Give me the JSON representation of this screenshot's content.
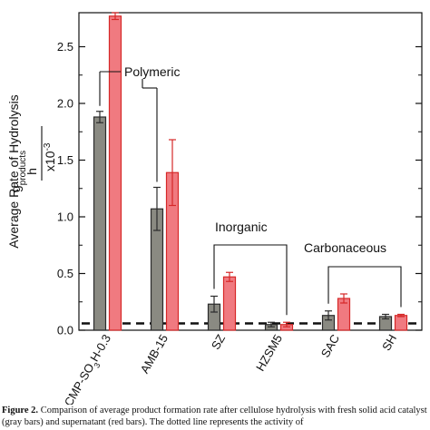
{
  "chart_data": {
    "type": "bar",
    "categories": [
      "CMP-SO3H-0.3",
      "AMB-15",
      "SZ",
      "HZSM5",
      "SAC",
      "SH"
    ],
    "category_labels": [
      {
        "main": "CMP-SO",
        "sub": "3",
        "rest": "H-0.3"
      },
      {
        "main": "AMB-15",
        "sub": "",
        "rest": ""
      },
      {
        "main": "SZ",
        "sub": "",
        "rest": ""
      },
      {
        "main": "HZSM5",
        "sub": "",
        "rest": ""
      },
      {
        "main": "SAC",
        "sub": "",
        "rest": ""
      },
      {
        "main": "SH",
        "sub": "",
        "rest": ""
      }
    ],
    "series": [
      {
        "values": [
          1.88,
          1.07,
          0.23,
          0.05,
          0.13,
          0.12
        ],
        "errors": [
          0.05,
          0.19,
          0.07,
          0.02,
          0.04,
          0.02
        ],
        "color": "#8a8a82",
        "edge": "#2b2b2b"
      },
      {
        "values": [
          2.77,
          1.39,
          0.47,
          0.05,
          0.28,
          0.13
        ],
        "errors": [
          0.03,
          0.29,
          0.04,
          0.02,
          0.04,
          0.01
        ],
        "color": "#f07a80",
        "edge": "#d62828"
      }
    ],
    "yticks": [
      0.0,
      0.5,
      1.0,
      1.5,
      2.0,
      2.5
    ],
    "ytick_labels": [
      "0.0",
      "0.5",
      "1.0",
      "1.5",
      "2.0",
      "2.5"
    ],
    "ylim": [
      0,
      2.8
    ],
    "dashed_line_value": 0.06,
    "ylabel": {
      "line1": "Average Rate of Hydrolysis",
      "frac_top_main": "g",
      "frac_top_sub": "products",
      "frac_bottom": "h",
      "multiplier": "x10",
      "exponent": "-3"
    },
    "annotations": [
      {
        "text": "Polymeric",
        "members": [
          0,
          1
        ]
      },
      {
        "text": "Inorganic",
        "members": [
          2,
          3
        ]
      },
      {
        "text": "Carbonaceous",
        "members": [
          4,
          5
        ]
      }
    ],
    "colors": {
      "gray_bar": "#8a8a82",
      "red_bar": "#f07a80",
      "red_edge": "#d62828"
    }
  },
  "caption": {
    "label": "Figure 2.",
    "text": "Comparison of average product formation rate after cellulose hydrolysis with fresh solid acid catalyst (gray bars) and supernatant (red bars). The dotted line represents the activity of"
  }
}
